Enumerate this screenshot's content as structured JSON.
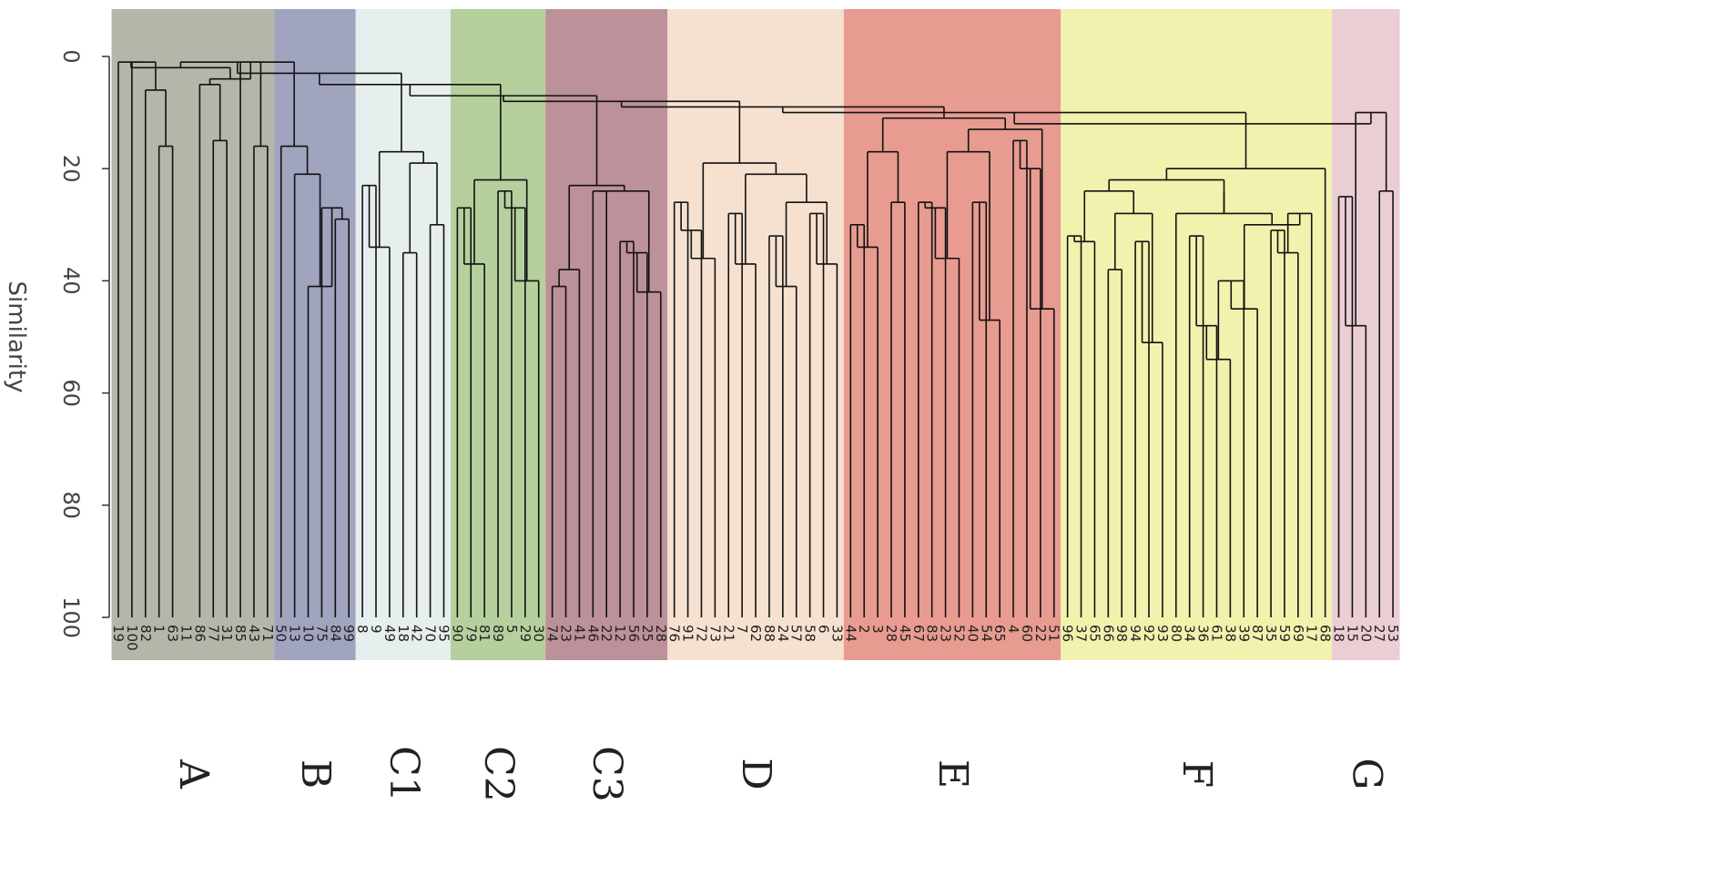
{
  "chart_data": {
    "type": "dendrogram",
    "title": "",
    "ylabel": "Similarity",
    "xlabel": "",
    "ylim": [
      0,
      100
    ],
    "yticks": [
      0,
      20,
      40,
      60,
      80,
      100
    ],
    "clusters": [
      {
        "name": "A",
        "color": "#a8a89a",
        "leaves": [
          "19",
          "100",
          "82",
          "1",
          "63",
          "11",
          "86",
          "77",
          "31",
          "85",
          "43",
          "71"
        ],
        "merges": [
          [
            3,
            4,
            16
          ],
          [
            2,
            3,
            6
          ],
          [
            7,
            8,
            15
          ],
          [
            10,
            11,
            16
          ],
          [
            6,
            7,
            5
          ],
          [
            9,
            10,
            1
          ],
          [
            6,
            9,
            4
          ],
          [
            1,
            2,
            1
          ],
          [
            0,
            1,
            1
          ],
          [
            0,
            6,
            2
          ]
        ]
      },
      {
        "name": "B",
        "color": "#9094b4",
        "leaves": [
          "50",
          "13",
          "10",
          "75",
          "84",
          "99"
        ],
        "merges": [
          [
            4,
            5,
            29
          ],
          [
            3,
            4,
            27
          ],
          [
            2,
            3,
            41
          ],
          [
            1,
            2,
            21
          ],
          [
            0,
            1,
            16
          ]
        ]
      },
      {
        "name": "C1",
        "color": "#e2ecea",
        "leaves": [
          "8",
          "9",
          "49",
          "18",
          "42",
          "70",
          "95"
        ],
        "merges": [
          [
            0,
            1,
            23
          ],
          [
            1,
            2,
            34
          ],
          [
            3,
            4,
            35
          ],
          [
            5,
            6,
            30
          ],
          [
            3,
            5,
            19
          ],
          [
            0,
            3,
            17
          ]
        ]
      },
      {
        "name": "C2",
        "color": "#a8c88c",
        "leaves": [
          "90",
          "79",
          "81",
          "89",
          "5",
          "29",
          "30"
        ],
        "merges": [
          [
            0,
            1,
            27
          ],
          [
            1,
            2,
            37
          ],
          [
            3,
            4,
            24
          ],
          [
            4,
            5,
            27
          ],
          [
            5,
            6,
            40
          ],
          [
            0,
            3,
            22
          ]
        ]
      },
      {
        "name": "C3",
        "color": "#b27e88",
        "leaves": [
          "74",
          "23",
          "41",
          "46",
          "22",
          "12",
          "56",
          "25",
          "28"
        ],
        "merges": [
          [
            0,
            1,
            41
          ],
          [
            1,
            2,
            38
          ],
          [
            0,
            2,
            32
          ],
          [
            3,
            4,
            24
          ],
          [
            5,
            6,
            33
          ],
          [
            6,
            7,
            35
          ],
          [
            7,
            8,
            42
          ],
          [
            3,
            5,
            24
          ],
          [
            0,
            3,
            23
          ]
        ]
      },
      {
        "name": "D",
        "color": "#f4dcc8",
        "leaves": [
          "76",
          "91",
          "72",
          "73",
          "21",
          "7",
          "62",
          "88",
          "24",
          "57",
          "58",
          "6",
          "33"
        ],
        "merges": [
          [
            0,
            1,
            26
          ],
          [
            1,
            2,
            31
          ],
          [
            2,
            3,
            36
          ],
          [
            4,
            5,
            28
          ],
          [
            5,
            6,
            37
          ],
          [
            7,
            8,
            32
          ],
          [
            8,
            9,
            41
          ],
          [
            10,
            11,
            28
          ],
          [
            11,
            12,
            37
          ],
          [
            7,
            10,
            26
          ],
          [
            4,
            7,
            21
          ],
          [
            0,
            4,
            19
          ]
        ]
      },
      {
        "name": "E",
        "color": "#e48a7c",
        "leaves": [
          "44",
          "2",
          "3",
          "28",
          "45",
          "67",
          "83",
          "23",
          "52",
          "40",
          "54",
          "65",
          "4",
          "60",
          "22",
          "51"
        ],
        "merges": [
          [
            0,
            1,
            30
          ],
          [
            1,
            2,
            34
          ],
          [
            3,
            4,
            26
          ],
          [
            0,
            3,
            17
          ],
          [
            5,
            6,
            26
          ],
          [
            6,
            7,
            27
          ],
          [
            7,
            8,
            36
          ],
          [
            9,
            10,
            26
          ],
          [
            10,
            11,
            47
          ],
          [
            5,
            9,
            17
          ],
          [
            12,
            13,
            15
          ],
          [
            13,
            14,
            20
          ],
          [
            14,
            15,
            45
          ],
          [
            5,
            12,
            13
          ],
          [
            0,
            5,
            11
          ]
        ]
      },
      {
        "name": "F",
        "color": "#eef0a0",
        "leaves": [
          "96",
          "37",
          "65",
          "66",
          "98",
          "94",
          "92",
          "93",
          "80",
          "34",
          "36",
          "61",
          "38",
          "39",
          "87",
          "35",
          "59",
          "69",
          "17",
          "68"
        ],
        "merges": [
          [
            0,
            1,
            32
          ],
          [
            1,
            2,
            33
          ],
          [
            3,
            4,
            38
          ],
          [
            5,
            6,
            33
          ],
          [
            6,
            7,
            51
          ],
          [
            4,
            5,
            28
          ],
          [
            3,
            4,
            28
          ],
          [
            0,
            3,
            24
          ],
          [
            9,
            10,
            32
          ],
          [
            10,
            11,
            48
          ],
          [
            11,
            12,
            54
          ],
          [
            12,
            13,
            40
          ],
          [
            13,
            14,
            45
          ],
          [
            9,
            12,
            40
          ],
          [
            15,
            16,
            31
          ],
          [
            16,
            17,
            35
          ],
          [
            15,
            18,
            28
          ],
          [
            9,
            15,
            30
          ],
          [
            8,
            9,
            28
          ],
          [
            8,
            15,
            24
          ],
          [
            0,
            8,
            22
          ],
          [
            0,
            19,
            20
          ]
        ]
      },
      {
        "name": "G",
        "color": "#e8c4cc",
        "leaves": [
          "18",
          "15",
          "20",
          "27",
          "53"
        ],
        "merges": [
          [
            0,
            1,
            25
          ],
          [
            1,
            2,
            48
          ],
          [
            3,
            4,
            24
          ],
          [
            0,
            3,
            10
          ]
        ]
      }
    ],
    "top_merges": [
      {
        "clusters": [
          "A",
          "B"
        ],
        "y": 3
      },
      {
        "clusters": [
          "AB",
          "C1C2C3D"
        ],
        "y": 5
      }
    ]
  }
}
